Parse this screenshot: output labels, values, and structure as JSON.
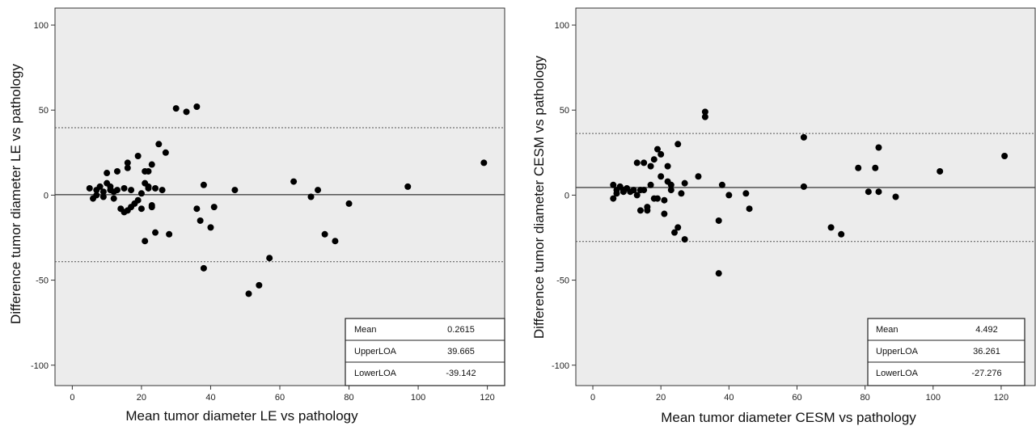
{
  "chart_data": [
    {
      "type": "scatter",
      "title": "",
      "xlabel": "Mean tumor diameter LE vs pathology",
      "ylabel": "Difference tumor diameter LE vs pathology",
      "xlim": [
        -5,
        125
      ],
      "ylim": [
        -112,
        110
      ],
      "xticks": [
        0,
        20,
        40,
        60,
        80,
        100,
        120
      ],
      "yticks": [
        100,
        50,
        0,
        -50,
        -100
      ],
      "grid": false,
      "lines": {
        "mean": 0.2615,
        "upper_loa": 39.665,
        "lower_loa": -39.142
      },
      "stats": [
        {
          "label": "Mean",
          "value": "0.2615"
        },
        {
          "label": "UpperLOA",
          "value": "39.665"
        },
        {
          "label": "LowerLOA",
          "value": "-39.142"
        }
      ],
      "points": [
        [
          5,
          4
        ],
        [
          6,
          -2
        ],
        [
          7,
          3
        ],
        [
          7,
          0
        ],
        [
          8,
          5
        ],
        [
          9,
          -1
        ],
        [
          9,
          2
        ],
        [
          10,
          13
        ],
        [
          10,
          7
        ],
        [
          11,
          3
        ],
        [
          11,
          5
        ],
        [
          12,
          -2
        ],
        [
          12,
          2
        ],
        [
          13,
          14
        ],
        [
          13,
          3
        ],
        [
          14,
          -8
        ],
        [
          15,
          -10
        ],
        [
          15,
          4
        ],
        [
          16,
          16
        ],
        [
          16,
          19
        ],
        [
          16,
          -9
        ],
        [
          17,
          -7
        ],
        [
          17,
          3
        ],
        [
          18,
          -5
        ],
        [
          19,
          -3
        ],
        [
          19,
          23
        ],
        [
          20,
          1
        ],
        [
          20,
          -8
        ],
        [
          21,
          -27
        ],
        [
          21,
          14
        ],
        [
          21,
          7
        ],
        [
          22,
          4
        ],
        [
          22,
          14
        ],
        [
          22,
          5
        ],
        [
          23,
          -7
        ],
        [
          23,
          -6
        ],
        [
          23,
          18
        ],
        [
          24,
          -22
        ],
        [
          24,
          4
        ],
        [
          25,
          30
        ],
        [
          26,
          3
        ],
        [
          27,
          25
        ],
        [
          28,
          -23
        ],
        [
          30,
          51
        ],
        [
          33,
          49
        ],
        [
          36,
          52
        ],
        [
          36,
          -8
        ],
        [
          37,
          -15
        ],
        [
          38,
          6
        ],
        [
          38,
          -43
        ],
        [
          40,
          -19
        ],
        [
          41,
          -7
        ],
        [
          47,
          3
        ],
        [
          51,
          -58
        ],
        [
          54,
          -53
        ],
        [
          57,
          -37
        ],
        [
          64,
          8
        ],
        [
          69,
          -1
        ],
        [
          71,
          3
        ],
        [
          73,
          -23
        ],
        [
          76,
          -27
        ],
        [
          80,
          -5
        ],
        [
          97,
          5
        ],
        [
          119,
          19
        ]
      ]
    },
    {
      "type": "scatter",
      "title": "",
      "xlabel": "Mean tumor diameter CESM vs pathology",
      "ylabel": "Difference tumor diameter CESM vs pathology",
      "xlim": [
        -5,
        130
      ],
      "ylim": [
        -112,
        110
      ],
      "xticks": [
        0,
        20,
        40,
        60,
        80,
        100,
        120
      ],
      "yticks": [
        100,
        50,
        0,
        -50,
        -100
      ],
      "grid": false,
      "lines": {
        "mean": 4.492,
        "upper_loa": 36.261,
        "lower_loa": -27.276
      },
      "stats": [
        {
          "label": "Mean",
          "value": "4.492"
        },
        {
          "label": "UpperLOA",
          "value": "36.261"
        },
        {
          "label": "LowerLOA",
          "value": "-27.276"
        }
      ],
      "points": [
        [
          6,
          -2
        ],
        [
          6,
          6
        ],
        [
          7,
          3
        ],
        [
          7,
          1
        ],
        [
          8,
          5
        ],
        [
          9,
          2
        ],
        [
          9,
          3
        ],
        [
          10,
          4
        ],
        [
          11,
          2
        ],
        [
          12,
          3
        ],
        [
          13,
          19
        ],
        [
          13,
          0
        ],
        [
          14,
          -9
        ],
        [
          14,
          3
        ],
        [
          15,
          19
        ],
        [
          15,
          3
        ],
        [
          16,
          -9
        ],
        [
          16,
          -7
        ],
        [
          17,
          17
        ],
        [
          17,
          6
        ],
        [
          18,
          -2
        ],
        [
          18,
          21
        ],
        [
          19,
          27
        ],
        [
          19,
          -2
        ],
        [
          20,
          24
        ],
        [
          20,
          11
        ],
        [
          21,
          -11
        ],
        [
          21,
          -3
        ],
        [
          22,
          8
        ],
        [
          22,
          17
        ],
        [
          23,
          6
        ],
        [
          23,
          3
        ],
        [
          24,
          -22
        ],
        [
          25,
          30
        ],
        [
          25,
          -19
        ],
        [
          26,
          1
        ],
        [
          27,
          -26
        ],
        [
          27,
          7
        ],
        [
          31,
          11
        ],
        [
          33,
          46
        ],
        [
          33,
          49
        ],
        [
          37,
          -15
        ],
        [
          37,
          -46
        ],
        [
          38,
          6
        ],
        [
          40,
          0
        ],
        [
          45,
          1
        ],
        [
          46,
          -8
        ],
        [
          62,
          34
        ],
        [
          62,
          5
        ],
        [
          70,
          -19
        ],
        [
          73,
          -23
        ],
        [
          78,
          16
        ],
        [
          81,
          2
        ],
        [
          83,
          16
        ],
        [
          84,
          28
        ],
        [
          84,
          2
        ],
        [
          89,
          -1
        ],
        [
          102,
          14
        ],
        [
          121,
          23
        ]
      ]
    }
  ]
}
